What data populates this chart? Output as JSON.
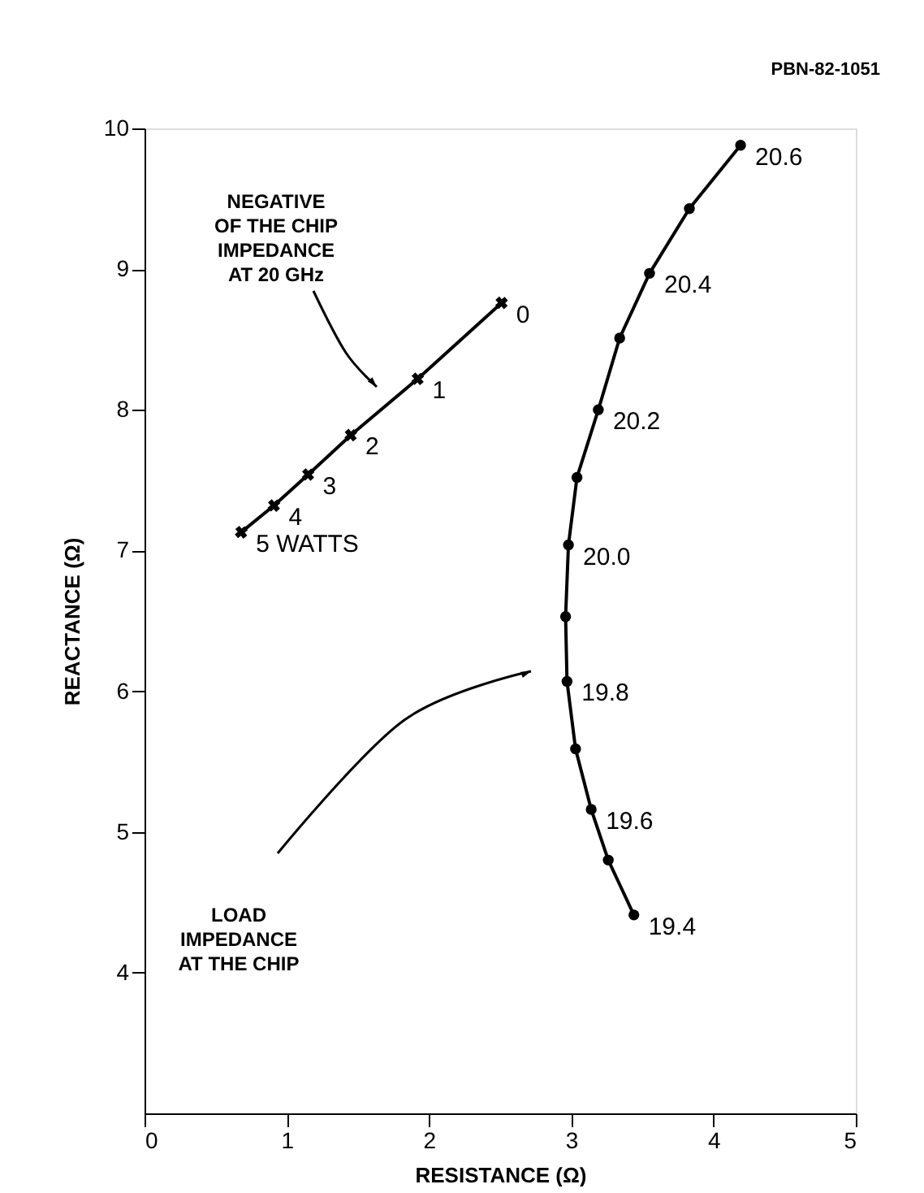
{
  "chart_data": {
    "type": "line",
    "xlabel": "RESISTANCE (Ω)",
    "ylabel": "REACTANCE (Ω)",
    "xlim": [
      0,
      5
    ],
    "xticks": [
      0,
      1,
      2,
      3,
      4,
      5
    ],
    "ylim": [
      3,
      10
    ],
    "yticks": [
      4,
      5,
      6,
      7,
      8,
      9,
      10
    ],
    "grid": false,
    "series": [
      {
        "color": "#000000",
        "marker": "circle",
        "x": [
          3.44,
          3.26,
          3.14,
          3.03,
          2.97,
          2.96,
          2.98,
          3.04,
          3.19,
          3.34,
          3.55,
          3.83,
          4.19
        ],
        "values": [
          4.41,
          4.8,
          5.16,
          5.59,
          6.07,
          6.53,
          7.04,
          7.52,
          8.0,
          8.51,
          8.97,
          9.43,
          9.88
        ]
      },
      {
        "color": "#000000",
        "marker": "cross",
        "x": [
          2.51,
          1.92,
          1.45,
          1.15,
          0.91,
          0.68
        ],
        "values": [
          8.76,
          8.22,
          7.82,
          7.54,
          7.32,
          7.13
        ]
      }
    ],
    "annotations": [
      {
        "text": "19.4",
        "x": 3.44,
        "y": 4.41
      },
      {
        "text": "19.6",
        "x": 3.14,
        "y": 5.16
      },
      {
        "text": "19.8",
        "x": 2.97,
        "y": 6.07
      },
      {
        "text": "20.0",
        "x": 2.98,
        "y": 7.04
      },
      {
        "text": "20.2",
        "x": 3.19,
        "y": 8.0
      },
      {
        "text": "20.4",
        "x": 3.55,
        "y": 8.97
      },
      {
        "text": "20.6",
        "x": 4.19,
        "y": 9.88
      },
      {
        "text": "0",
        "x": 2.51,
        "y": 8.76
      },
      {
        "text": "1",
        "x": 1.92,
        "y": 8.22
      },
      {
        "text": "2",
        "x": 1.45,
        "y": 7.82
      },
      {
        "text": "3",
        "x": 1.15,
        "y": 7.54
      },
      {
        "text": "4",
        "x": 0.91,
        "y": 7.32
      },
      {
        "text": "5   WATTS",
        "x": 0.68,
        "y": 7.13
      },
      "NEGATIVE\nOF THE CHIP\nIMPEDANCE\nAT 20 GHz",
      "LOAD\nIMPEDANCE\nAT THE CHIP",
      "PBN-82-1051"
    ]
  }
}
